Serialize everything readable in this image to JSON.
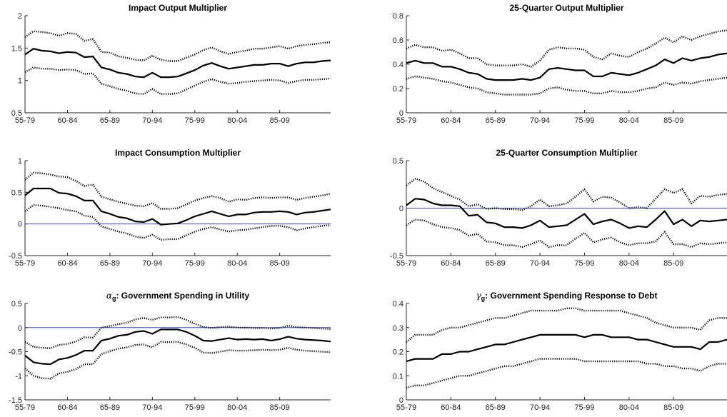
{
  "colors": {
    "estimate": "#000000",
    "band": "#000000",
    "zero_line": "#2f46c8",
    "axis": "#262626",
    "tick_label": "#262626"
  },
  "x_tick_labels": [
    "55-79",
    "60-84",
    "65-89",
    "70-94",
    "75-99",
    "80-04",
    "85-09"
  ],
  "chart_data": [
    {
      "type": "line",
      "title": "Impact Output Multiplier",
      "xlabel": "",
      "ylabel": "",
      "xlim": [
        0,
        36
      ],
      "ylim": [
        0.5,
        2
      ],
      "yticks": [
        0.5,
        1,
        1.5,
        2
      ],
      "ytick_labels": [
        "0.5",
        "1",
        "1.5",
        "2"
      ],
      "xticks": [
        0,
        5,
        10,
        15,
        20,
        25,
        30
      ],
      "grid": false,
      "zero_line": null,
      "series": [
        {
          "style": "solid",
          "values": [
            1.4,
            1.49,
            1.46,
            1.45,
            1.42,
            1.44,
            1.43,
            1.36,
            1.37,
            1.2,
            1.17,
            1.12,
            1.1,
            1.06,
            1.05,
            1.12,
            1.05,
            1.05,
            1.06,
            1.11,
            1.16,
            1.23,
            1.27,
            1.22,
            1.18,
            1.2,
            1.22,
            1.24,
            1.24,
            1.26,
            1.26,
            1.22,
            1.26,
            1.28,
            1.28,
            1.3,
            1.31
          ]
        },
        {
          "style": "dotted",
          "values": [
            1.67,
            1.76,
            1.75,
            1.73,
            1.69,
            1.73,
            1.72,
            1.61,
            1.64,
            1.44,
            1.43,
            1.37,
            1.35,
            1.32,
            1.31,
            1.38,
            1.32,
            1.3,
            1.3,
            1.35,
            1.4,
            1.47,
            1.51,
            1.45,
            1.41,
            1.44,
            1.46,
            1.49,
            1.49,
            1.51,
            1.53,
            1.49,
            1.53,
            1.55,
            1.56,
            1.58,
            1.59
          ]
        },
        {
          "style": "dotted",
          "values": [
            1.13,
            1.2,
            1.18,
            1.18,
            1.16,
            1.17,
            1.16,
            1.1,
            1.11,
            0.95,
            0.91,
            0.87,
            0.84,
            0.8,
            0.79,
            0.87,
            0.79,
            0.79,
            0.8,
            0.86,
            0.92,
            0.98,
            1.02,
            0.98,
            0.95,
            0.96,
            0.98,
            0.99,
            1.0,
            1.01,
            1.0,
            0.96,
            0.99,
            1.01,
            1.01,
            1.02,
            1.03
          ]
        }
      ]
    },
    {
      "type": "line",
      "title": "25-Quarter Output Multiplier",
      "xlabel": "",
      "ylabel": "",
      "xlim": [
        0,
        36
      ],
      "ylim": [
        0,
        0.8
      ],
      "yticks": [
        0,
        0.2,
        0.4,
        0.6,
        0.8
      ],
      "ytick_labels": [
        "0",
        "0.2",
        "0.4",
        "0.6",
        "0.8"
      ],
      "xticks": [
        0,
        5,
        10,
        15,
        20,
        25,
        30
      ],
      "grid": false,
      "zero_line": null,
      "series": [
        {
          "style": "solid",
          "values": [
            0.41,
            0.43,
            0.41,
            0.41,
            0.38,
            0.38,
            0.36,
            0.33,
            0.32,
            0.28,
            0.27,
            0.27,
            0.27,
            0.28,
            0.27,
            0.29,
            0.36,
            0.37,
            0.36,
            0.35,
            0.35,
            0.3,
            0.3,
            0.33,
            0.32,
            0.31,
            0.33,
            0.36,
            0.39,
            0.44,
            0.41,
            0.45,
            0.43,
            0.45,
            0.46,
            0.48,
            0.49
          ]
        },
        {
          "style": "dotted",
          "values": [
            0.53,
            0.56,
            0.54,
            0.54,
            0.51,
            0.52,
            0.49,
            0.45,
            0.45,
            0.4,
            0.39,
            0.39,
            0.39,
            0.4,
            0.38,
            0.43,
            0.52,
            0.54,
            0.53,
            0.53,
            0.52,
            0.46,
            0.44,
            0.49,
            0.47,
            0.46,
            0.5,
            0.53,
            0.57,
            0.62,
            0.58,
            0.63,
            0.6,
            0.63,
            0.65,
            0.67,
            0.68
          ]
        },
        {
          "style": "dotted",
          "values": [
            0.28,
            0.3,
            0.29,
            0.28,
            0.26,
            0.25,
            0.23,
            0.21,
            0.2,
            0.17,
            0.16,
            0.15,
            0.15,
            0.15,
            0.15,
            0.16,
            0.2,
            0.21,
            0.19,
            0.18,
            0.18,
            0.16,
            0.16,
            0.18,
            0.17,
            0.17,
            0.18,
            0.2,
            0.21,
            0.25,
            0.23,
            0.25,
            0.24,
            0.26,
            0.27,
            0.28,
            0.29
          ]
        }
      ]
    },
    {
      "type": "line",
      "title": "Impact Consumption Multiplier",
      "xlabel": "",
      "ylabel": "",
      "xlim": [
        0,
        36
      ],
      "ylim": [
        -0.5,
        1
      ],
      "yticks": [
        -0.5,
        0,
        0.5,
        1
      ],
      "ytick_labels": [
        "-0.5",
        "0",
        "0.5",
        "1"
      ],
      "xticks": [
        0,
        5,
        10,
        15,
        20,
        25,
        30
      ],
      "grid": false,
      "zero_line": 0,
      "series": [
        {
          "style": "solid",
          "values": [
            0.45,
            0.56,
            0.56,
            0.56,
            0.49,
            0.48,
            0.44,
            0.37,
            0.37,
            0.2,
            0.16,
            0.11,
            0.09,
            0.04,
            0.03,
            0.08,
            -0.01,
            0.0,
            0.01,
            0.06,
            0.12,
            0.16,
            0.2,
            0.16,
            0.12,
            0.15,
            0.15,
            0.18,
            0.19,
            0.19,
            0.2,
            0.19,
            0.15,
            0.18,
            0.19,
            0.21,
            0.23
          ]
        },
        {
          "style": "dotted",
          "values": [
            0.7,
            0.81,
            0.8,
            0.78,
            0.75,
            0.74,
            0.68,
            0.6,
            0.62,
            0.43,
            0.39,
            0.35,
            0.32,
            0.29,
            0.28,
            0.33,
            0.24,
            0.24,
            0.25,
            0.31,
            0.37,
            0.41,
            0.44,
            0.41,
            0.35,
            0.39,
            0.38,
            0.41,
            0.42,
            0.41,
            0.42,
            0.42,
            0.38,
            0.41,
            0.43,
            0.45,
            0.48
          ]
        },
        {
          "style": "dotted",
          "values": [
            0.2,
            0.3,
            0.29,
            0.27,
            0.25,
            0.22,
            0.2,
            0.13,
            0.11,
            -0.04,
            -0.08,
            -0.12,
            -0.15,
            -0.2,
            -0.22,
            -0.17,
            -0.25,
            -0.24,
            -0.24,
            -0.18,
            -0.12,
            -0.08,
            -0.05,
            -0.09,
            -0.12,
            -0.1,
            -0.09,
            -0.07,
            -0.05,
            -0.03,
            -0.03,
            -0.05,
            -0.1,
            -0.07,
            -0.05,
            -0.03,
            -0.02
          ]
        }
      ]
    },
    {
      "type": "line",
      "title": "25-Quarter Consumption Multiplier",
      "xlabel": "",
      "ylabel": "",
      "xlim": [
        0,
        36
      ],
      "ylim": [
        -0.5,
        0.5
      ],
      "yticks": [
        -0.5,
        0,
        0.5
      ],
      "ytick_labels": [
        "-0.5",
        "0",
        "0.5"
      ],
      "xticks": [
        0,
        5,
        10,
        15,
        20,
        25,
        30
      ],
      "grid": false,
      "zero_line": 0,
      "series": [
        {
          "style": "solid",
          "values": [
            0.03,
            0.1,
            0.09,
            0.05,
            0.03,
            0.03,
            0.02,
            -0.08,
            -0.07,
            -0.15,
            -0.16,
            -0.2,
            -0.2,
            -0.21,
            -0.18,
            -0.13,
            -0.2,
            -0.19,
            -0.18,
            -0.12,
            -0.06,
            -0.17,
            -0.14,
            -0.12,
            -0.16,
            -0.21,
            -0.19,
            -0.2,
            -0.12,
            -0.03,
            -0.17,
            -0.12,
            -0.19,
            -0.13,
            -0.14,
            -0.13,
            -0.12
          ]
        },
        {
          "style": "dotted",
          "values": [
            0.24,
            0.31,
            0.28,
            0.21,
            0.17,
            0.13,
            0.09,
            0.02,
            0.04,
            -0.01,
            0.0,
            -0.01,
            -0.01,
            -0.02,
            0.02,
            0.09,
            0.02,
            0.03,
            0.05,
            0.12,
            0.2,
            0.07,
            0.12,
            0.11,
            0.06,
            0.0,
            0.01,
            0.0,
            0.1,
            0.2,
            0.16,
            0.2,
            0.05,
            0.13,
            0.12,
            0.14,
            0.15
          ]
        },
        {
          "style": "dotted",
          "values": [
            -0.18,
            -0.12,
            -0.13,
            -0.17,
            -0.2,
            -0.21,
            -0.23,
            -0.29,
            -0.27,
            -0.35,
            -0.36,
            -0.39,
            -0.39,
            -0.41,
            -0.38,
            -0.34,
            -0.41,
            -0.39,
            -0.39,
            -0.32,
            -0.26,
            -0.36,
            -0.33,
            -0.31,
            -0.36,
            -0.39,
            -0.37,
            -0.37,
            -0.35,
            -0.25,
            -0.38,
            -0.38,
            -0.41,
            -0.37,
            -0.38,
            -0.37,
            -0.36
          ]
        }
      ]
    },
    {
      "type": "line",
      "title": "",
      "title_symbol": "α",
      "title_subscript": "g",
      "title_text": ": Government Spending in Utility",
      "xlabel": "",
      "ylabel": "",
      "xlim": [
        0,
        36
      ],
      "ylim": [
        -1.5,
        0.5
      ],
      "yticks": [
        -1.5,
        -1,
        -0.5,
        0,
        0.5
      ],
      "ytick_labels": [
        "-1.5",
        "-1",
        "-0.5",
        "0",
        "0.5"
      ],
      "xticks": [
        0,
        5,
        10,
        15,
        20,
        25,
        30
      ],
      "grid": false,
      "zero_line": 0,
      "series": [
        {
          "style": "solid",
          "values": [
            -0.58,
            -0.72,
            -0.75,
            -0.76,
            -0.66,
            -0.63,
            -0.57,
            -0.48,
            -0.48,
            -0.27,
            -0.23,
            -0.17,
            -0.15,
            -0.09,
            -0.07,
            -0.13,
            -0.04,
            -0.04,
            -0.04,
            -0.09,
            -0.17,
            -0.27,
            -0.28,
            -0.25,
            -0.22,
            -0.25,
            -0.24,
            -0.25,
            -0.24,
            -0.27,
            -0.24,
            -0.19,
            -0.23,
            -0.25,
            -0.26,
            -0.27,
            -0.29
          ]
        },
        {
          "style": "dotted",
          "values": [
            -0.3,
            -0.4,
            -0.42,
            -0.43,
            -0.36,
            -0.34,
            -0.29,
            -0.2,
            -0.21,
            0.0,
            0.03,
            0.07,
            0.1,
            0.17,
            0.2,
            0.16,
            0.21,
            0.21,
            0.22,
            0.16,
            0.08,
            0.01,
            -0.01,
            0.01,
            0.02,
            0.0,
            0.0,
            -0.01,
            -0.01,
            -0.02,
            -0.01,
            0.04,
            0.01,
            0.0,
            -0.01,
            -0.02,
            -0.03
          ]
        },
        {
          "style": "dotted",
          "values": [
            -0.85,
            -1.0,
            -1.05,
            -1.06,
            -0.95,
            -0.92,
            -0.86,
            -0.76,
            -0.76,
            -0.55,
            -0.49,
            -0.44,
            -0.41,
            -0.36,
            -0.35,
            -0.41,
            -0.3,
            -0.3,
            -0.3,
            -0.35,
            -0.42,
            -0.52,
            -0.53,
            -0.5,
            -0.47,
            -0.48,
            -0.48,
            -0.47,
            -0.46,
            -0.47,
            -0.46,
            -0.42,
            -0.46,
            -0.48,
            -0.49,
            -0.5,
            -0.51
          ]
        }
      ]
    },
    {
      "type": "line",
      "title": "",
      "title_symbol": "γ",
      "title_subscript": "g",
      "title_text": ": Government Spending Response to Debt",
      "xlabel": "",
      "ylabel": "",
      "xlim": [
        0,
        36
      ],
      "ylim": [
        0,
        0.4
      ],
      "yticks": [
        0,
        0.1,
        0.2,
        0.3,
        0.4
      ],
      "ytick_labels": [
        "0",
        "0.1",
        "0.2",
        "0.3",
        "0.4"
      ],
      "xticks": [
        0,
        5,
        10,
        15,
        20,
        25,
        30
      ],
      "grid": false,
      "zero_line": null,
      "series": [
        {
          "style": "solid",
          "values": [
            0.16,
            0.17,
            0.17,
            0.17,
            0.19,
            0.19,
            0.2,
            0.2,
            0.21,
            0.22,
            0.23,
            0.23,
            0.24,
            0.25,
            0.26,
            0.27,
            0.27,
            0.27,
            0.27,
            0.27,
            0.26,
            0.27,
            0.27,
            0.26,
            0.26,
            0.26,
            0.25,
            0.25,
            0.24,
            0.23,
            0.22,
            0.22,
            0.22,
            0.21,
            0.24,
            0.24,
            0.25
          ]
        },
        {
          "style": "dotted",
          "values": [
            0.24,
            0.27,
            0.27,
            0.27,
            0.29,
            0.3,
            0.3,
            0.31,
            0.32,
            0.33,
            0.34,
            0.34,
            0.35,
            0.36,
            0.37,
            0.37,
            0.37,
            0.37,
            0.38,
            0.38,
            0.37,
            0.37,
            0.37,
            0.37,
            0.37,
            0.36,
            0.35,
            0.34,
            0.32,
            0.31,
            0.3,
            0.3,
            0.3,
            0.29,
            0.33,
            0.34,
            0.34
          ]
        },
        {
          "style": "dotted",
          "values": [
            0.05,
            0.06,
            0.06,
            0.07,
            0.08,
            0.09,
            0.1,
            0.1,
            0.11,
            0.12,
            0.13,
            0.14,
            0.14,
            0.15,
            0.16,
            0.17,
            0.17,
            0.17,
            0.17,
            0.17,
            0.16,
            0.16,
            0.16,
            0.16,
            0.16,
            0.16,
            0.16,
            0.15,
            0.15,
            0.14,
            0.14,
            0.13,
            0.13,
            0.12,
            0.14,
            0.15,
            0.15
          ]
        }
      ]
    }
  ]
}
